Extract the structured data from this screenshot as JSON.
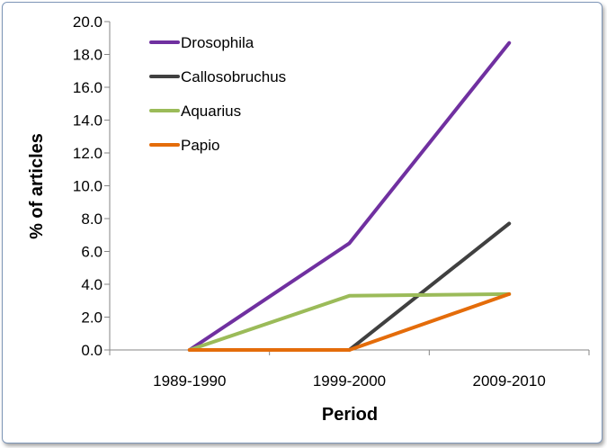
{
  "chart_data": {
    "type": "line",
    "title": "",
    "xlabel": "Period",
    "ylabel": "% of articles",
    "categories": [
      "1989-1990",
      "1999-2000",
      "2009-2010"
    ],
    "ylim": [
      0,
      20
    ],
    "yticks": [
      "0.0",
      "2.0",
      "4.0",
      "6.0",
      "8.0",
      "10.0",
      "12.0",
      "14.0",
      "16.0",
      "18.0",
      "20.0"
    ],
    "grid": false,
    "legend_position": "top-left",
    "series": [
      {
        "name": "Drosophila",
        "color": "#7030a0",
        "values": [
          0.0,
          6.5,
          18.7
        ]
      },
      {
        "name": "Callosobruchus",
        "color": "#404040",
        "values": [
          null,
          0.0,
          7.7
        ]
      },
      {
        "name": "Aquarius",
        "color": "#9bbb59",
        "values": [
          0.0,
          3.3,
          3.4
        ]
      },
      {
        "name": "Papio",
        "color": "#e46c0a",
        "values": [
          0.0,
          0.0,
          3.4
        ]
      }
    ]
  }
}
